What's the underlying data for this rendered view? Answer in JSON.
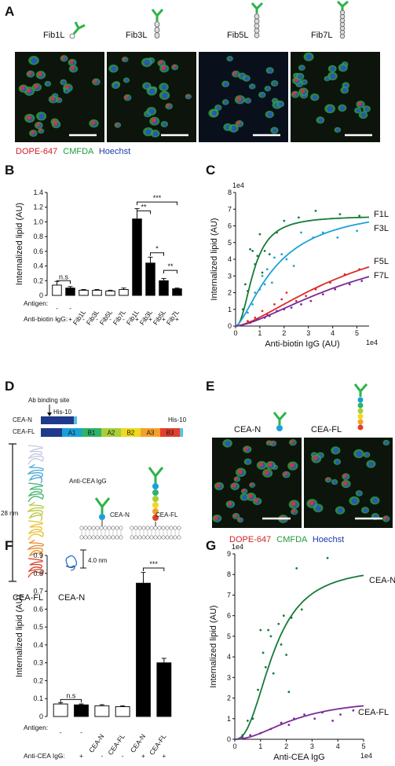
{
  "panels": {
    "A": {
      "label": "A",
      "constructs": [
        "Fib1L",
        "Fib3L",
        "Fib5L",
        "Fib7L"
      ],
      "stain_labels": [
        {
          "text": "DOPE-647",
          "color": "#d0202a"
        },
        {
          "text": "CMFDA",
          "color": "#1f9a3a"
        },
        {
          "text": "Hoechst",
          "color": "#1d3aa6"
        }
      ]
    },
    "B": {
      "label": "B"
    },
    "C": {
      "label": "C"
    },
    "D": {
      "label": "D",
      "ab_site": "Ab binding site",
      "his_top": "His-10",
      "his_right": "His-10",
      "cean": "CEA-N",
      "ceafl": "CEA-FL",
      "domains": [
        "A1",
        "B1",
        "A2",
        "B2",
        "A3",
        "B3"
      ],
      "domain_colors": [
        "#19a0d8",
        "#2fb36b",
        "#a7cf3a",
        "#f0d91e",
        "#f4a12a",
        "#e2402b"
      ],
      "len_28": "28 nm",
      "len_4": "4.0 nm",
      "anti_cea": "Anti-CEA IgG",
      "membrane_cean": "CEA-N",
      "membrane_ceafl": "CEA-FL",
      "struct_fl": "CEA-FL",
      "struct_n": "CEA-N"
    },
    "E": {
      "label": "E",
      "cean": "CEA-N",
      "ceafl": "CEA-FL",
      "stain_labels": [
        {
          "text": "DOPE-647",
          "color": "#d0202a"
        },
        {
          "text": "CMFDA",
          "color": "#1f9a3a"
        },
        {
          "text": "Hoechst",
          "color": "#1d3aa6"
        }
      ]
    },
    "F": {
      "label": "F"
    },
    "G": {
      "label": "G"
    }
  },
  "chart_data": [
    {
      "id": "B",
      "type": "bar",
      "ylabel": "Internalized lipid (AU)",
      "ylim": [
        0,
        1.4
      ],
      "yticks": [
        "0",
        "0.2",
        "0.4",
        "0.6",
        "0.8",
        "1.0",
        "1.2",
        "1.4"
      ],
      "row_labels": [
        "Antigen:",
        "Anti-biotin IgG:"
      ],
      "categories": [
        "-",
        "-",
        "Fib1L",
        "Fib3L",
        "Fib5L",
        "Fib7L",
        "Fib1L",
        "Fib3L",
        "Fib5L",
        "Fib7L"
      ],
      "igg": [
        "-",
        "+",
        "-",
        "-",
        "-",
        "-",
        "+",
        "+",
        "+",
        "+"
      ],
      "values": [
        0.14,
        0.1,
        0.07,
        0.07,
        0.06,
        0.08,
        1.04,
        0.44,
        0.2,
        0.09
      ],
      "errors": [
        0.05,
        0.02,
        0.01,
        0.01,
        0.01,
        0.02,
        0.14,
        0.08,
        0.03,
        0.01
      ],
      "fills": [
        "#ffffff",
        "#000000",
        "#ffffff",
        "#ffffff",
        "#ffffff",
        "#ffffff",
        "#000000",
        "#000000",
        "#000000",
        "#000000"
      ],
      "sig": [
        {
          "from": 0,
          "to": 1,
          "label": "n.s",
          "y": 0.2
        },
        {
          "from": 6,
          "to": 9,
          "label": "***",
          "y": 1.27
        },
        {
          "from": 6,
          "to": 7,
          "label": "**",
          "y": 1.15
        },
        {
          "from": 7,
          "to": 8,
          "label": "*",
          "y": 0.58
        },
        {
          "from": 8,
          "to": 9,
          "label": "**",
          "y": 0.34
        }
      ]
    },
    {
      "id": "C",
      "type": "scatter",
      "xlabel": "Anti-biotin IgG (AU)",
      "ylabel": "Internalized lipid (AU)",
      "xlim": [
        0,
        5.5
      ],
      "ylim": [
        0,
        8
      ],
      "xticks": [
        "0",
        "1",
        "2",
        "3",
        "4",
        "5"
      ],
      "yticks": [
        "0",
        "1",
        "2",
        "3",
        "4",
        "5",
        "6",
        "7",
        "8"
      ],
      "x_exp": "1e4",
      "y_exp": "1e4",
      "series": [
        {
          "name": "F1L",
          "color": "#167a3a",
          "vmax": 6.6,
          "k": 0.75,
          "n": 2.2,
          "points": [
            [
              0.3,
              1.0
            ],
            [
              0.4,
              2.5
            ],
            [
              0.5,
              2.1
            ],
            [
              0.6,
              4.6
            ],
            [
              0.7,
              4.5
            ],
            [
              0.8,
              3.7
            ],
            [
              0.9,
              4.2
            ],
            [
              1.0,
              5.5
            ],
            [
              1.1,
              3.2
            ],
            [
              1.2,
              4.5
            ],
            [
              1.4,
              4.3
            ],
            [
              1.7,
              5.6
            ],
            [
              2.0,
              6.3
            ],
            [
              2.6,
              6.5
            ],
            [
              3.3,
              6.9
            ],
            [
              4.3,
              6.7
            ],
            [
              5.1,
              6.6
            ]
          ]
        },
        {
          "name": "F3L",
          "color": "#1ea0d8",
          "vmax": 7.3,
          "k": 1.7,
          "n": 1.5,
          "points": [
            [
              0.5,
              0.8
            ],
            [
              0.7,
              1.3
            ],
            [
              0.8,
              2.0
            ],
            [
              1.0,
              2.2
            ],
            [
              1.1,
              3.0
            ],
            [
              1.2,
              2.5
            ],
            [
              1.3,
              3.4
            ],
            [
              1.5,
              2.6
            ],
            [
              1.6,
              4.1
            ],
            [
              1.9,
              4.3
            ],
            [
              2.1,
              4.0
            ],
            [
              2.4,
              3.6
            ],
            [
              2.7,
              5.6
            ],
            [
              3.2,
              5.3
            ],
            [
              3.6,
              5.6
            ],
            [
              4.2,
              5.3
            ],
            [
              5.0,
              5.7
            ]
          ]
        },
        {
          "name": "F5L",
          "color": "#dd2c27",
          "vmax": 6.8,
          "k": 5.2,
          "n": 1.5,
          "points": [
            [
              0.5,
              0.3
            ],
            [
              0.8,
              0.5
            ],
            [
              1.1,
              0.9
            ],
            [
              1.3,
              0.7
            ],
            [
              1.6,
              1.3
            ],
            [
              1.9,
              1.6
            ],
            [
              2.1,
              2.0
            ],
            [
              2.5,
              1.5
            ],
            [
              2.9,
              1.8
            ],
            [
              3.3,
              2.2
            ],
            [
              3.9,
              2.6
            ],
            [
              4.5,
              3.1
            ],
            [
              5.1,
              3.4
            ]
          ]
        },
        {
          "name": "F7L",
          "color": "#7a2b95",
          "vmax": 6.0,
          "k": 5.6,
          "n": 1.5,
          "points": [
            [
              0.6,
              0.2
            ],
            [
              0.9,
              0.4
            ],
            [
              1.2,
              0.5
            ],
            [
              1.4,
              0.6
            ],
            [
              1.7,
              0.9
            ],
            [
              2.0,
              1.0
            ],
            [
              2.3,
              1.1
            ],
            [
              2.7,
              1.3
            ],
            [
              3.1,
              1.5
            ],
            [
              3.6,
              1.9
            ],
            [
              4.1,
              2.2
            ],
            [
              4.7,
              2.5
            ],
            [
              5.2,
              2.7
            ]
          ]
        }
      ]
    },
    {
      "id": "F",
      "type": "bar",
      "ylabel": "Internalized lipid (AU)",
      "ylim": [
        0,
        0.9
      ],
      "yticks": [
        "0",
        "0.1",
        "0.2",
        "0.3",
        "0.4",
        "0.5",
        "0.6",
        "0.7",
        "0.8",
        "0.9"
      ],
      "row_labels": [
        "Antigen:",
        "Anti-CEA IgG:"
      ],
      "categories": [
        "-",
        "-",
        "CEA-N",
        "CEA-FL",
        "CEA-N",
        "CEA-FL"
      ],
      "igg": [
        "-",
        "+",
        "-",
        "-",
        "+",
        "+"
      ],
      "values": [
        0.07,
        0.065,
        0.06,
        0.055,
        0.745,
        0.3
      ],
      "errors": [
        0.007,
        0.005,
        0.006,
        0.005,
        0.06,
        0.025
      ],
      "fills": [
        "#ffffff",
        "#000000",
        "#ffffff",
        "#ffffff",
        "#000000",
        "#000000"
      ],
      "sig": [
        {
          "from": 0,
          "to": 1,
          "label": "n.s",
          "y": 0.095
        },
        {
          "from": 4,
          "to": 5,
          "label": "***",
          "y": 0.83
        }
      ]
    },
    {
      "id": "G",
      "type": "scatter",
      "xlabel": "Anti-CEA IgG",
      "ylabel": "Internalized lipid (AU)",
      "xlim": [
        0,
        5
      ],
      "ylim": [
        0,
        9
      ],
      "xticks": [
        "0",
        "1",
        "2",
        "3",
        "4",
        "5"
      ],
      "yticks": [
        "0",
        "1",
        "2",
        "3",
        "4",
        "5",
        "6",
        "7",
        "8",
        "9"
      ],
      "x_exp": "1e4",
      "y_exp": "1e4",
      "series": [
        {
          "name": "CEA-N",
          "color": "#167a3a",
          "vmax": 8.4,
          "k": 1.5,
          "n": 2.4,
          "points": [
            [
              0.3,
              0.2
            ],
            [
              0.5,
              0.9
            ],
            [
              0.7,
              1.0
            ],
            [
              0.9,
              2.4
            ],
            [
              1.0,
              5.3
            ],
            [
              1.1,
              4.2
            ],
            [
              1.2,
              3.5
            ],
            [
              1.3,
              5.3
            ],
            [
              1.4,
              5.0
            ],
            [
              1.5,
              3.2
            ],
            [
              1.7,
              5.6
            ],
            [
              1.8,
              4.6
            ],
            [
              1.9,
              6.0
            ],
            [
              2.0,
              4.1
            ],
            [
              2.1,
              2.3
            ],
            [
              2.2,
              5.9
            ],
            [
              2.4,
              8.3
            ],
            [
              2.6,
              6.3
            ],
            [
              3.6,
              8.8
            ]
          ]
        },
        {
          "name": "CEA-FL",
          "color": "#7a2b95",
          "vmax": 2.0,
          "k": 2.4,
          "n": 2.0,
          "points": [
            [
              0.3,
              0.1
            ],
            [
              0.6,
              0.2
            ],
            [
              1.0,
              0.3
            ],
            [
              1.4,
              0.5
            ],
            [
              1.8,
              0.8
            ],
            [
              2.1,
              0.7
            ],
            [
              2.3,
              1.0
            ],
            [
              2.7,
              1.2
            ],
            [
              3.1,
              1.0
            ],
            [
              3.4,
              1.3
            ],
            [
              3.8,
              0.9
            ],
            [
              4.1,
              1.2
            ],
            [
              4.6,
              1.4
            ]
          ]
        }
      ]
    }
  ]
}
